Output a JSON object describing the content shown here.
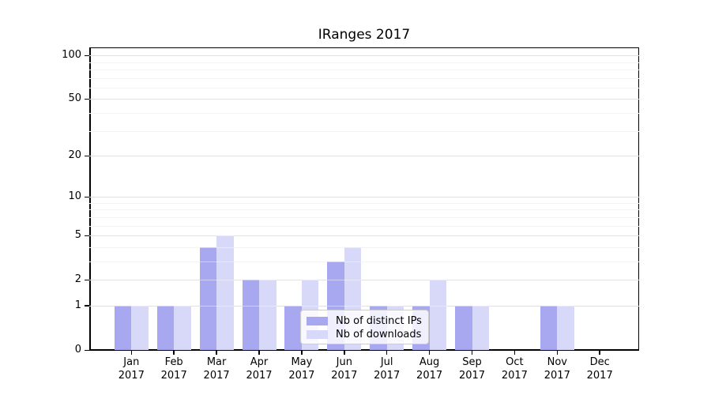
{
  "title": "IRanges 2017",
  "chart_data": {
    "type": "bar",
    "title": "IRanges 2017",
    "categories": [
      "Jan",
      "Feb",
      "Mar",
      "Apr",
      "May",
      "Jun",
      "Jul",
      "Aug",
      "Sep",
      "Oct",
      "Nov",
      "Dec"
    ],
    "x_sublabel": "2017",
    "series": [
      {
        "name": "Nb of distinct IPs",
        "color": "#a8a8f0",
        "values": [
          1,
          1,
          4,
          2,
          1,
          3,
          1,
          1,
          1,
          0,
          1,
          0
        ]
      },
      {
        "name": "Nb of downloads",
        "color": "#d8d8f8",
        "values": [
          1,
          1,
          5,
          2,
          2,
          4,
          1,
          2,
          1,
          0,
          1,
          0
        ]
      }
    ],
    "yscale": "log1p",
    "y_major_ticks": [
      0,
      1,
      2,
      5,
      10,
      20,
      50,
      100
    ],
    "y_minor_gridlines": [
      3,
      4,
      6,
      7,
      8,
      9,
      30,
      40,
      60,
      70,
      80,
      90
    ],
    "ylim": [
      0,
      113
    ],
    "grid": true,
    "legend_position": "lower-center-overlay",
    "colors": {
      "major_grid": "#c9c9c9",
      "minor_grid": "#ececec",
      "axis": "#000000",
      "background": "#ffffff"
    }
  }
}
